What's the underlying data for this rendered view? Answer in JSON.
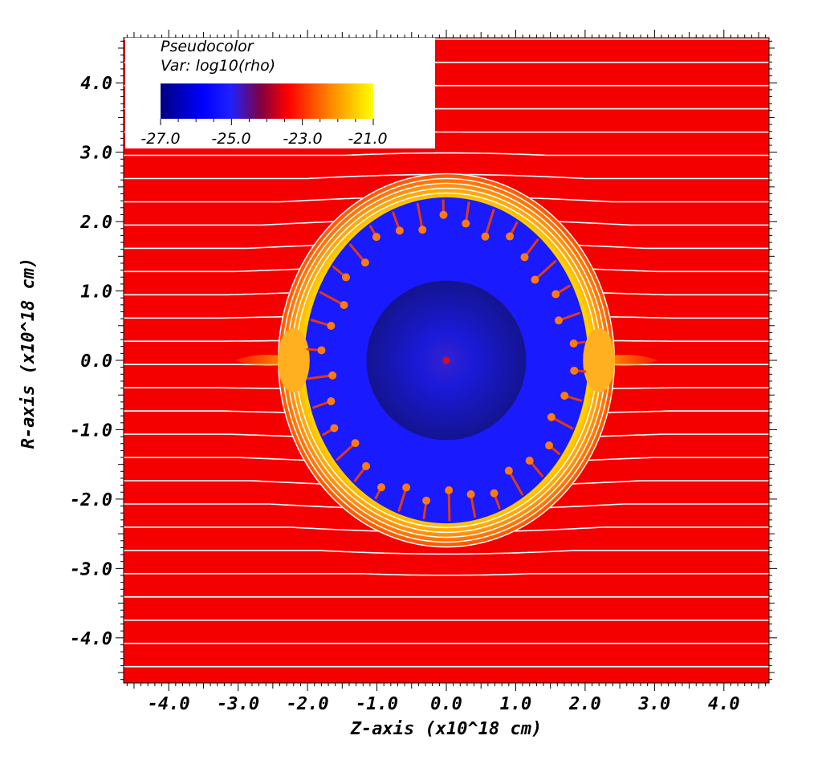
{
  "chart_data": {
    "type": "heatmap",
    "plot_kind": "Pseudocolor",
    "variable_label": "Var: log10(rho)",
    "xlabel": "Z-axis (x10^18 cm)",
    "ylabel": "R-axis (x10^18 cm)",
    "xlim": [
      -4.65,
      4.65
    ],
    "ylim": [
      -4.65,
      4.65
    ],
    "x_ticks": [
      "-4.0",
      "-3.0",
      "-2.0",
      "-1.0",
      "0.0",
      "1.0",
      "2.0",
      "3.0",
      "4.0"
    ],
    "y_ticks": [
      "4.0",
      "3.0",
      "2.0",
      "1.0",
      "0.0",
      "-1.0",
      "-2.0",
      "-3.0",
      "-4.0"
    ],
    "colorbar": {
      "min": -27.0,
      "max": -21.0,
      "tick_labels": [
        "-27.0",
        "-25.0",
        "-23.0",
        "-21.0"
      ],
      "colors": [
        "#000080",
        "#0000ff",
        "#ff0000",
        "#ffff00"
      ]
    },
    "regions": {
      "ambient_medium": {
        "log10_rho": -23.0,
        "color": "#f40000"
      },
      "cavity_interior": {
        "log10_rho": -25.0,
        "color": "#1a1aff"
      },
      "inner_wind_sphere_radius": 1.15,
      "cavity_radius": 2.35,
      "shell_outer_radius": 2.7,
      "center_peak_color": "#ff0000"
    },
    "field_lines": {
      "color": "#ffffff",
      "spacing": 0.335
    },
    "legend_box": "top-left"
  }
}
